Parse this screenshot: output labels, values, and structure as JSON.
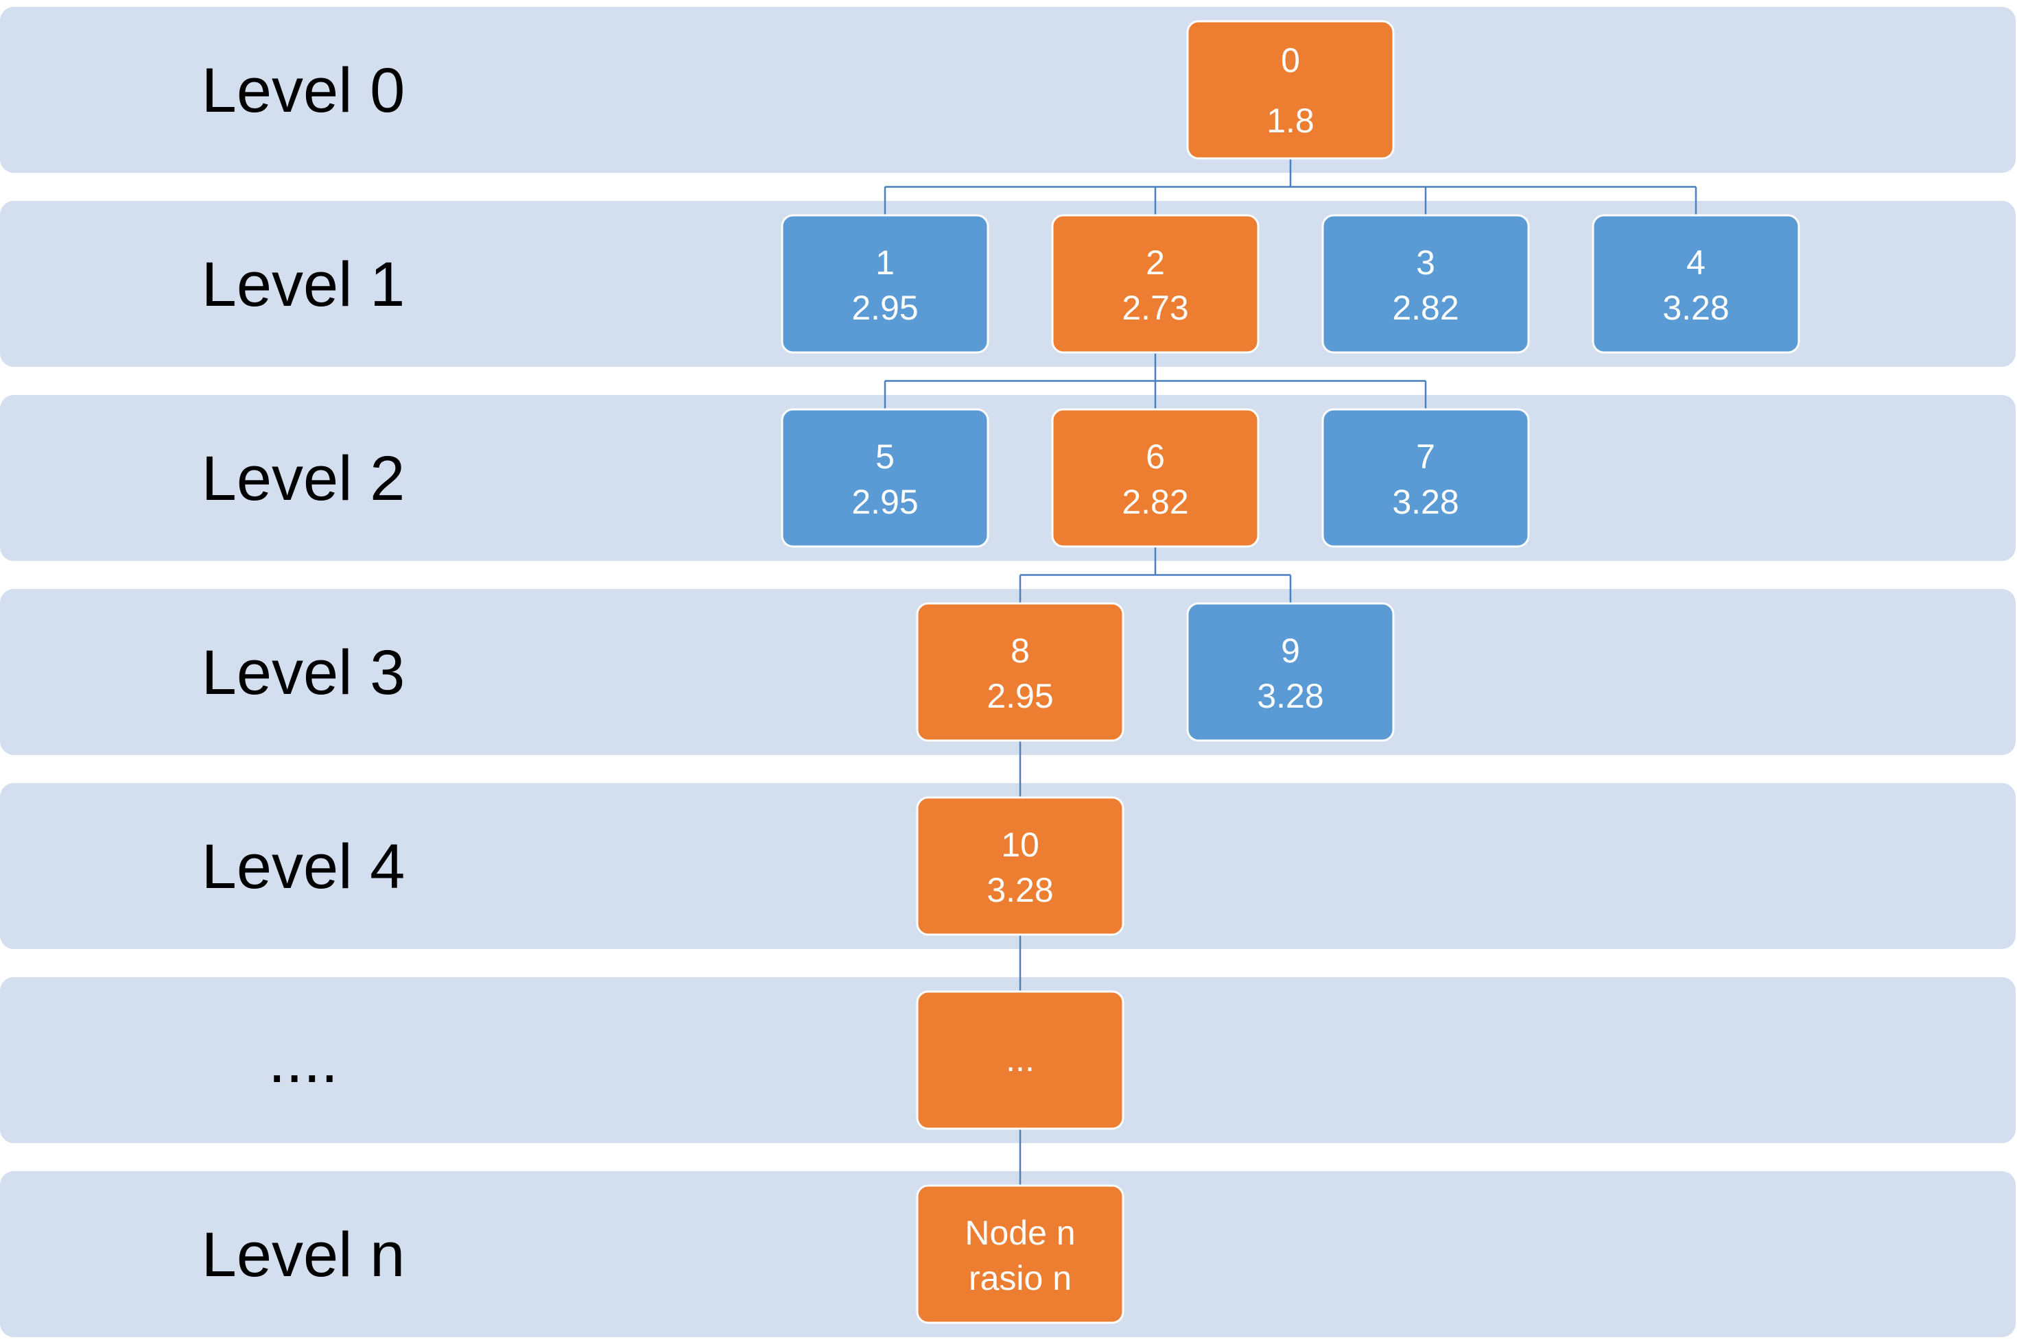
{
  "diagram": {
    "levels": [
      {
        "label": "Level 0"
      },
      {
        "label": "Level 1"
      },
      {
        "label": "Level 2"
      },
      {
        "label": "Level 3"
      },
      {
        "label": "Level 4"
      },
      {
        "label": "...."
      },
      {
        "label": "Level n"
      }
    ],
    "nodes": [
      {
        "id": "0",
        "line1": "0",
        "line2": "1.8",
        "level": 0,
        "selected": true
      },
      {
        "id": "1",
        "line1": "1",
        "line2": "2.95",
        "level": 1,
        "selected": false
      },
      {
        "id": "2",
        "line1": "2",
        "line2": "2.73",
        "level": 1,
        "selected": true
      },
      {
        "id": "3",
        "line1": "3",
        "line2": "2.82",
        "level": 1,
        "selected": false
      },
      {
        "id": "4",
        "line1": "4",
        "line2": "3.28",
        "level": 1,
        "selected": false
      },
      {
        "id": "5",
        "line1": "5",
        "line2": "2.95",
        "level": 2,
        "selected": false
      },
      {
        "id": "6",
        "line1": "6",
        "line2": "2.82",
        "level": 2,
        "selected": true
      },
      {
        "id": "7",
        "line1": "7",
        "line2": "3.28",
        "level": 2,
        "selected": false
      },
      {
        "id": "8",
        "line1": "8",
        "line2": "2.95",
        "level": 3,
        "selected": true
      },
      {
        "id": "9",
        "line1": "9",
        "line2": "3.28",
        "level": 3,
        "selected": false
      },
      {
        "id": "10",
        "line1": "10",
        "line2": "3.28",
        "level": 4,
        "selected": true
      },
      {
        "id": "ellipsis",
        "line1": "...",
        "line2": "",
        "level": 5,
        "selected": true
      },
      {
        "id": "n",
        "line1": "Node n",
        "line2": "rasio n",
        "level": 6,
        "selected": true
      }
    ],
    "edges": [
      {
        "parent": "0",
        "children": [
          "1",
          "2",
          "3",
          "4"
        ]
      },
      {
        "parent": "2",
        "children": [
          "5",
          "6",
          "7"
        ]
      },
      {
        "parent": "6",
        "children": [
          "8",
          "9"
        ]
      },
      {
        "parent": "8",
        "children": [
          "10"
        ]
      },
      {
        "parent": "10",
        "children": [
          "ellipsis"
        ]
      },
      {
        "parent": "ellipsis",
        "children": [
          "n"
        ]
      }
    ],
    "colors": {
      "band": "#d3deee",
      "selected_node": "#ed7d31",
      "other_node": "#5b9bd5",
      "connector": "#4a7fc0"
    }
  }
}
